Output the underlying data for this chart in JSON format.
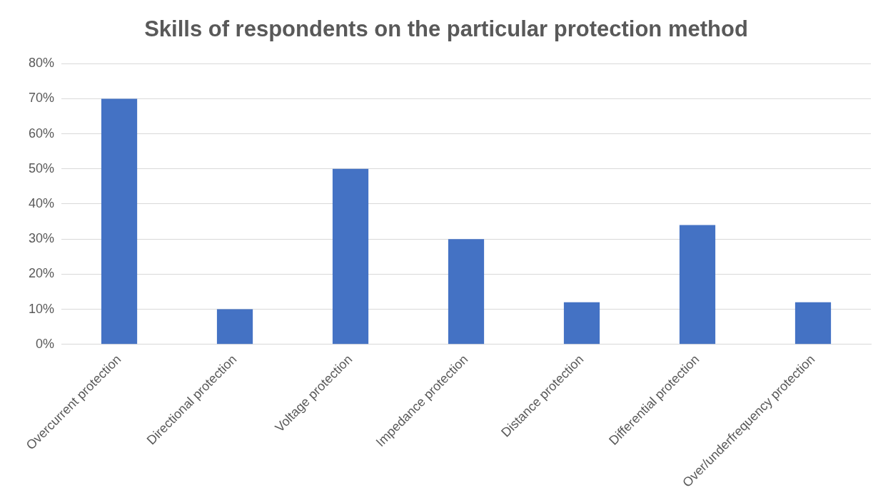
{
  "chart_data": {
    "type": "bar",
    "title": "Skills of respondents on the particular protection method",
    "categories": [
      "Overcurrent protection",
      "Directional protection",
      "Voltage protection",
      "Impedance protection",
      "Distance protection",
      "Differential protection",
      "Over/underfrequency protection"
    ],
    "values": [
      70,
      10,
      50,
      30,
      12,
      34,
      12
    ],
    "color": "#4472c4",
    "ylim": [
      0,
      80
    ],
    "yticks": [
      {
        "value": 0,
        "label": "0%"
      },
      {
        "value": 10,
        "label": "10%"
      },
      {
        "value": 20,
        "label": "20%"
      },
      {
        "value": 30,
        "label": "30%"
      },
      {
        "value": 40,
        "label": "40%"
      },
      {
        "value": 50,
        "label": "50%"
      },
      {
        "value": 60,
        "label": "60%"
      },
      {
        "value": 70,
        "label": "70%"
      },
      {
        "value": 80,
        "label": "80%"
      }
    ],
    "grid": "y",
    "legend": false
  }
}
